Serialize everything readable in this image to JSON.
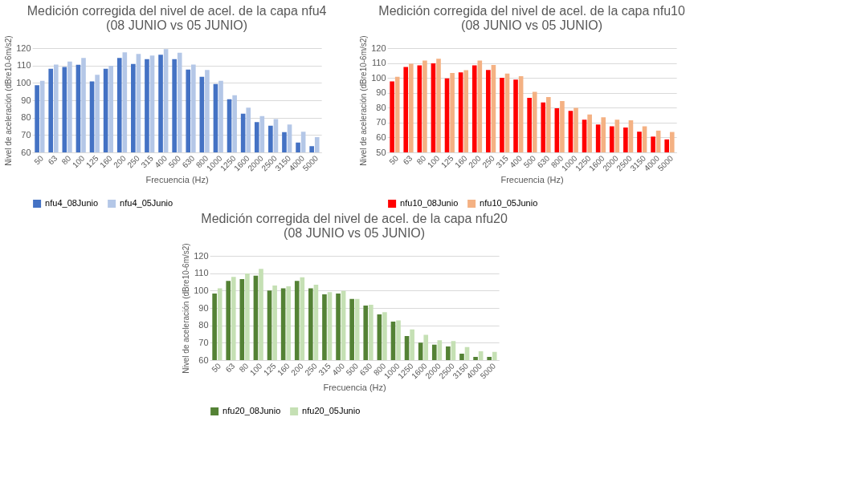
{
  "chart_data": [
    {
      "type": "bar",
      "title": "Medición corregida del nivel de acel. de la capa nfu4\n(08 JUNIO vs 05 JUNIO)",
      "xlabel": "Frecuencia (Hz)",
      "ylabel": "Nivel de aceleración (dBre10-6m/s2)",
      "categories": [
        "50",
        "63",
        "80",
        "100",
        "125",
        "160",
        "200",
        "250",
        "315",
        "400",
        "500",
        "630",
        "800",
        "1000",
        "1250",
        "1600",
        "2000",
        "2500",
        "3150",
        "4000",
        "5000"
      ],
      "series": [
        {
          "name": "nfu4_08Junio",
          "color": "#4472c4",
          "values": [
            98.7,
            108.1,
            109.1,
            110.4,
            100.8,
            108.1,
            114.3,
            110.9,
            113.6,
            116.2,
            113.6,
            107.7,
            103.5,
            99.4,
            90.6,
            82.3,
            77.4,
            75.4,
            71.6,
            65.7,
            63.6
          ]
        },
        {
          "name": "nfu4_05Junio",
          "color": "#b4c7e7",
          "values": [
            101.2,
            110.5,
            112.3,
            114.3,
            104.6,
            109.8,
            117.6,
            116.6,
            115.7,
            119.4,
            117.3,
            110.5,
            107.4,
            101.2,
            92.9,
            85.7,
            80.9,
            79.1,
            76.0,
            71.9,
            68.8
          ]
        }
      ],
      "ylim": [
        60,
        120
      ],
      "yticks": [
        60,
        70,
        80,
        90,
        100,
        110,
        120
      ],
      "grid": "y",
      "legend": "bottom"
    },
    {
      "type": "bar",
      "title": "Medición corregida del nivel de acel. de la capa nfu10\n(08 JUNIO vs 05 JUNIO)",
      "xlabel": "Frecuencia (Hz)",
      "ylabel": "Nivel de aceleración (dBre10-6m/s2)",
      "categories": [
        "50",
        "63",
        "80",
        "100",
        "125",
        "160",
        "200",
        "250",
        "315",
        "400",
        "500",
        "630",
        "800",
        "1000",
        "1250",
        "1600",
        "2000",
        "2500",
        "3150",
        "4000",
        "5000"
      ],
      "series": [
        {
          "name": "nfu10_08Junio",
          "color": "#ff0000",
          "values": [
            97.7,
            107.4,
            108.4,
            109.8,
            99.7,
            103.7,
            108.4,
            105.3,
            100.1,
            98.8,
            86.6,
            83.5,
            79.6,
            77.9,
            72.0,
            68.7,
            67.5,
            66.7,
            63.9,
            60.6,
            58.7
          ]
        },
        {
          "name": "nfu10_05Junio",
          "color": "#f4b183",
          "values": [
            100.7,
            109.5,
            111.6,
            112.8,
            103.3,
            105.2,
            111.6,
            108.7,
            102.9,
            101.2,
            90.7,
            87.2,
            84.4,
            79.9,
            75.5,
            73.5,
            71.9,
            71.5,
            67.5,
            64.6,
            63.7
          ]
        }
      ],
      "ylim": [
        50,
        120
      ],
      "yticks": [
        50,
        60,
        70,
        80,
        90,
        100,
        110,
        120
      ],
      "grid": "y",
      "legend": "bottom"
    },
    {
      "type": "bar",
      "title": "Medición corregida del nivel de acel. de la capa nfu20\n(08 JUNIO vs 05 JUNIO)",
      "xlabel": "Frecuencia (Hz)",
      "ylabel": "Nivel de aceleración (dBre10-6m/s2)",
      "categories": [
        "50",
        "63",
        "80",
        "100",
        "125",
        "160",
        "200",
        "250",
        "315",
        "400",
        "500",
        "630",
        "800",
        "1000",
        "1250",
        "1600",
        "2000",
        "2500",
        "3150",
        "4000",
        "5000"
      ],
      "series": [
        {
          "name": "nfu20_08Junio",
          "color": "#548235",
          "values": [
            98.3,
            105.6,
            106.6,
            108.6,
            100.0,
            101.3,
            105.6,
            101.3,
            97.9,
            98.3,
            95.2,
            91.4,
            86.3,
            82.1,
            73.8,
            70.0,
            68.9,
            67.8,
            63.7,
            61.9,
            61.9
          ]
        },
        {
          "name": "nfu20_05Junio",
          "color": "#c5e0b4",
          "values": [
            101.3,
            107.9,
            109.8,
            112.5,
            102.9,
            102.5,
            107.6,
            103.4,
            99.1,
            99.8,
            95.2,
            91.8,
            87.6,
            82.9,
            77.6,
            74.5,
            71.4,
            71.0,
            67.5,
            65.1,
            64.7
          ]
        }
      ],
      "ylim": [
        60,
        120
      ],
      "yticks": [
        60,
        70,
        80,
        90,
        100,
        110,
        120
      ],
      "grid": "y",
      "legend": "bottom"
    }
  ]
}
